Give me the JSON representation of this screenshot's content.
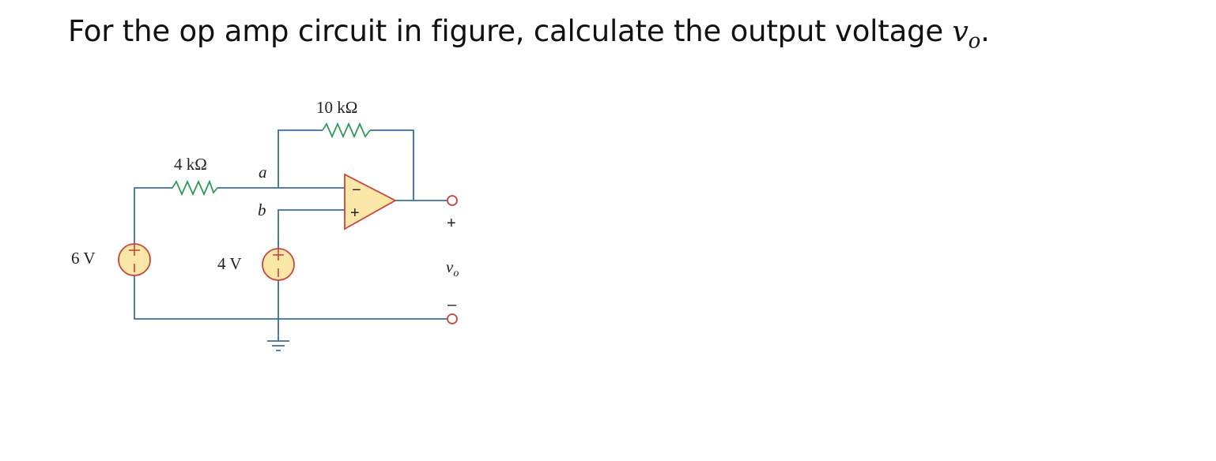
{
  "question": {
    "text": "For the op amp circuit in figure, calculate the output voltage ",
    "var": "v",
    "sub": "o",
    "end": "."
  },
  "circuit": {
    "r_feedback": "10 kΩ",
    "r_input": "4 kΩ",
    "node_a": "a",
    "node_b": "b",
    "source_left": "6 V",
    "source_mid": "4 V",
    "out_plus": "+",
    "out_minus": "–",
    "out_var": "v",
    "out_sub": "o",
    "opamp_minus": "−",
    "opamp_plus": "+",
    "colors": {
      "wire": "#3a6fa0",
      "resistor": "#2e9a5a",
      "component": "#c8453a",
      "fill": "#fbe7a8"
    }
  }
}
